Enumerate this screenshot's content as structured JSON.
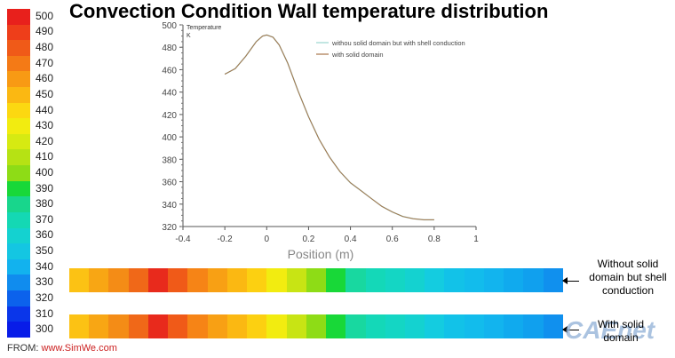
{
  "title": "Convection Condition Wall temperature distribution",
  "colorbar": {
    "labels": [
      "500",
      "490",
      "480",
      "470",
      "460",
      "450",
      "440",
      "430",
      "420",
      "410",
      "400",
      "390",
      "380",
      "370",
      "360",
      "350",
      "340",
      "330",
      "320",
      "310",
      "300"
    ],
    "colors": [
      "#e8201c",
      "#ee3e1a",
      "#f05a18",
      "#f47a16",
      "#f89a14",
      "#fbb812",
      "#fcd811",
      "#f2ec10",
      "#d6ea12",
      "#b6e214",
      "#8edc16",
      "#18d838",
      "#18d68c",
      "#14d8b4",
      "#14d2d0",
      "#14c6e2",
      "#12b2ee",
      "#108cee",
      "#0c62ec",
      "#0a36ea",
      "#081ce8"
    ]
  },
  "chart_data": {
    "type": "line",
    "ylabel": "Temperature\nK",
    "xlabel": "Position (m)",
    "xlim": [
      -0.4,
      1
    ],
    "ylim": [
      320,
      500
    ],
    "xticks": [
      "-0.4",
      "-0.2",
      "0",
      "0.2",
      "0.4",
      "0.6",
      "0.8",
      "1"
    ],
    "yticks": [
      "320",
      "340",
      "360",
      "380",
      "400",
      "420",
      "440",
      "460",
      "480",
      "500"
    ],
    "legend": [
      "withou solid domain but with shell conduction",
      "with solid domain"
    ],
    "legend_position": "top-right",
    "series": [
      {
        "name": "withou solid domain but with shell conduction",
        "color": "#9ad4ce",
        "x": [
          -0.2,
          -0.15,
          -0.1,
          -0.05,
          -0.02,
          0,
          0.03,
          0.06,
          0.1,
          0.15,
          0.2,
          0.25,
          0.3,
          0.35,
          0.4,
          0.45,
          0.5,
          0.55,
          0.6,
          0.65,
          0.7,
          0.75,
          0.8
        ],
        "y": [
          456,
          461,
          472,
          485,
          490,
          491,
          489,
          482,
          466,
          441,
          418,
          398,
          382,
          369,
          359,
          352,
          345,
          338,
          333,
          329,
          327,
          326,
          326
        ]
      },
      {
        "name": "with solid domain",
        "color": "#a8744a",
        "x": [
          -0.2,
          -0.15,
          -0.1,
          -0.05,
          -0.02,
          0,
          0.03,
          0.06,
          0.1,
          0.15,
          0.2,
          0.25,
          0.3,
          0.35,
          0.4,
          0.45,
          0.5,
          0.55,
          0.6,
          0.65,
          0.7,
          0.75,
          0.8
        ],
        "y": [
          456,
          461,
          472,
          485,
          490,
          491,
          489,
          482,
          466,
          441,
          418,
          398,
          382,
          369,
          359,
          352,
          345,
          338,
          333,
          329,
          327,
          326,
          326
        ]
      }
    ]
  },
  "strips": {
    "top": {
      "label": "Without solid\ndomain but shell\nconduction",
      "colors": [
        "#fcc214",
        "#f8a614",
        "#f48c16",
        "#f06818",
        "#e82a1c",
        "#f05a18",
        "#f68416",
        "#f8a014",
        "#fbb812",
        "#fcd011",
        "#f2ec10",
        "#c8e414",
        "#8edc16",
        "#18d838",
        "#18d8a0",
        "#14d8b8",
        "#14d6c4",
        "#14d2d0",
        "#14cce0",
        "#12c2e8",
        "#12bcec",
        "#12b4ee",
        "#10aaee",
        "#10a0ee",
        "#1090ee"
      ]
    },
    "bottom": {
      "label": "With solid\ndomain",
      "colors": [
        "#fcc214",
        "#f8a614",
        "#f48c16",
        "#f06818",
        "#e82a1c",
        "#f05a18",
        "#f68416",
        "#f8a014",
        "#fbb812",
        "#fcd011",
        "#f2ec10",
        "#c8e414",
        "#8edc16",
        "#18d838",
        "#18d8a0",
        "#14d8b8",
        "#14d6c4",
        "#14d2d0",
        "#14cce0",
        "#12c2e8",
        "#12bcec",
        "#12b4ee",
        "#10aaee",
        "#10a0ee",
        "#1090ee"
      ]
    }
  },
  "footer": {
    "prefix": "FROM:",
    "site": "www.SimWe.com"
  },
  "watermark": "CAEnet"
}
